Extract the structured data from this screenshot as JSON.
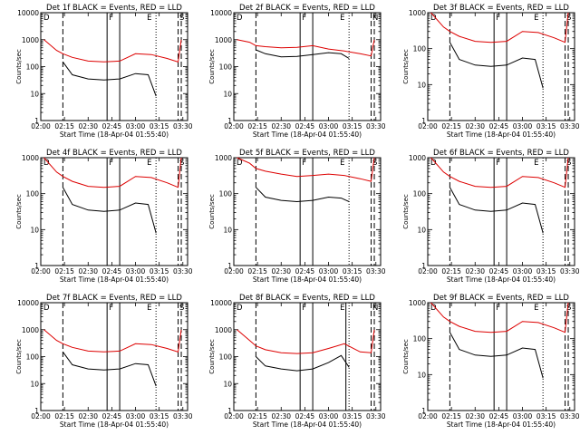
{
  "figure": {
    "xlabel": "Start Time (18-Apr-04 01:55:40)",
    "ylabel": "Counts/sec",
    "x_ticks": [
      "02:00",
      "02:15",
      "02:30",
      "02:45",
      "03:00",
      "03:15",
      "03:30"
    ],
    "y_ticks": [
      "1",
      "10",
      "100",
      "1000",
      "10000"
    ],
    "colors": {
      "events": "#000000",
      "lld": "#dd0000",
      "axes": "#000000"
    }
  },
  "chart_data": [
    {
      "type": "line",
      "title": "Det 1f BLACK = Events, RED = LLD",
      "ylim": [
        1,
        10000
      ],
      "yscale": "log",
      "xlim": [
        "02:00",
        "03:33"
      ],
      "markers": [
        "D",
        "F",
        "E",
        "S"
      ],
      "solid_lines": [
        "02:42",
        "02:50"
      ],
      "dotted_lines": [
        "03:13"
      ],
      "dashed_lines": [
        "02:14",
        "03:27",
        "03:29"
      ],
      "series": [
        {
          "color": "#000000",
          "x": [
            "02:14",
            "02:20",
            "02:30",
            "02:40",
            "02:50",
            "03:00",
            "03:08",
            "03:13"
          ],
          "y": [
            150,
            50,
            35,
            32,
            35,
            55,
            50,
            8
          ]
        },
        {
          "color": "#dd0000",
          "x": [
            "02:02",
            "02:10",
            "02:14",
            "02:20",
            "02:30",
            "02:40",
            "02:50",
            "03:00",
            "03:10",
            "03:20",
            "03:27",
            "03:29"
          ],
          "y": [
            1000,
            400,
            300,
            220,
            160,
            150,
            160,
            300,
            280,
            200,
            150,
            1000
          ]
        }
      ]
    },
    {
      "type": "line",
      "title": "Det 2f BLACK = Events, RED = LLD",
      "ylim": [
        1,
        10000
      ],
      "yscale": "log",
      "xlim": [
        "02:00",
        "03:33"
      ],
      "markers": [
        "D",
        "F",
        "E",
        "N"
      ],
      "solid_lines": [
        "02:42",
        "02:50"
      ],
      "dotted_lines": [
        "03:13"
      ],
      "dashed_lines": [
        "02:14",
        "03:27",
        "03:29"
      ],
      "series": [
        {
          "color": "#000000",
          "x": [
            "02:14",
            "02:20",
            "02:30",
            "02:40",
            "02:50",
            "03:00",
            "03:08",
            "03:13"
          ],
          "y": [
            420,
            300,
            230,
            240,
            280,
            330,
            300,
            200
          ]
        },
        {
          "color": "#dd0000",
          "x": [
            "02:02",
            "02:10",
            "02:14",
            "02:20",
            "02:30",
            "02:40",
            "02:50",
            "03:00",
            "03:10",
            "03:20",
            "03:27",
            "03:29"
          ],
          "y": [
            1000,
            800,
            600,
            550,
            500,
            520,
            600,
            450,
            380,
            300,
            250,
            1000
          ]
        }
      ]
    },
    {
      "type": "line",
      "title": "Det 3f BLACK = Events, RED = LLD",
      "ylim": [
        1,
        1000
      ],
      "yscale": "log",
      "xlim": [
        "02:00",
        "03:33"
      ],
      "markers": [
        "D",
        "F",
        "E",
        "S"
      ],
      "solid_lines": [
        "02:42",
        "02:50"
      ],
      "dotted_lines": [
        "03:13"
      ],
      "dashed_lines": [
        "02:14",
        "03:27",
        "03:29"
      ],
      "series": [
        {
          "color": "#000000",
          "x": [
            "02:14",
            "02:20",
            "02:30",
            "02:40",
            "02:50",
            "03:00",
            "03:08",
            "03:13"
          ],
          "y": [
            150,
            50,
            35,
            32,
            35,
            55,
            50,
            8
          ]
        },
        {
          "color": "#dd0000",
          "x": [
            "02:02",
            "02:10",
            "02:14",
            "02:20",
            "02:30",
            "02:40",
            "02:50",
            "03:00",
            "03:10",
            "03:20",
            "03:27",
            "03:29"
          ],
          "y": [
            1000,
            400,
            300,
            220,
            160,
            150,
            160,
            300,
            280,
            200,
            150,
            1000
          ]
        }
      ]
    },
    {
      "type": "line",
      "title": "Det 4f BLACK = Events, RED = LLD",
      "ylim": [
        1,
        1000
      ],
      "yscale": "log",
      "xlim": [
        "02:00",
        "03:33"
      ],
      "markers": [
        "D",
        "F",
        "E",
        "S"
      ],
      "solid_lines": [
        "02:42",
        "02:50"
      ],
      "dotted_lines": [
        "03:13"
      ],
      "dashed_lines": [
        "02:14",
        "03:27",
        "03:29"
      ],
      "series": [
        {
          "color": "#000000",
          "x": [
            "02:14",
            "02:20",
            "02:30",
            "02:40",
            "02:50",
            "03:00",
            "03:08",
            "03:13"
          ],
          "y": [
            150,
            50,
            35,
            32,
            35,
            55,
            50,
            8
          ]
        },
        {
          "color": "#dd0000",
          "x": [
            "02:02",
            "02:10",
            "02:14",
            "02:20",
            "02:30",
            "02:40",
            "02:50",
            "03:00",
            "03:10",
            "03:20",
            "03:27",
            "03:29"
          ],
          "y": [
            1000,
            400,
            300,
            220,
            160,
            150,
            160,
            300,
            280,
            200,
            150,
            1000
          ]
        }
      ]
    },
    {
      "type": "line",
      "title": "Det 5f BLACK = Events, RED = LLD",
      "ylim": [
        1,
        1000
      ],
      "yscale": "log",
      "xlim": [
        "02:00",
        "03:33"
      ],
      "markers": [
        "D",
        "F",
        "E",
        "S"
      ],
      "solid_lines": [
        "02:42",
        "02:50"
      ],
      "dotted_lines": [
        "03:13"
      ],
      "dashed_lines": [
        "02:14",
        "03:27",
        "03:29"
      ],
      "series": [
        {
          "color": "#000000",
          "x": [
            "02:14",
            "02:20",
            "02:30",
            "02:40",
            "02:50",
            "03:00",
            "03:08",
            "03:13"
          ],
          "y": [
            150,
            80,
            65,
            60,
            65,
            80,
            75,
            60
          ]
        },
        {
          "color": "#dd0000",
          "x": [
            "02:02",
            "02:10",
            "02:14",
            "02:20",
            "02:30",
            "02:40",
            "02:50",
            "03:00",
            "03:10",
            "03:20",
            "03:27",
            "03:29"
          ],
          "y": [
            1000,
            700,
            500,
            420,
            350,
            300,
            320,
            350,
            320,
            260,
            220,
            1000
          ]
        }
      ]
    },
    {
      "type": "line",
      "title": "Det 6f BLACK = Events, RED = LLD",
      "ylim": [
        1,
        1000
      ],
      "yscale": "log",
      "xlim": [
        "02:00",
        "03:33"
      ],
      "markers": [
        "D",
        "F",
        "E",
        "S"
      ],
      "solid_lines": [
        "02:42",
        "02:50"
      ],
      "dotted_lines": [
        "03:13"
      ],
      "dashed_lines": [
        "02:14",
        "03:27",
        "03:29"
      ],
      "series": [
        {
          "color": "#000000",
          "x": [
            "02:14",
            "02:20",
            "02:30",
            "02:40",
            "02:50",
            "03:00",
            "03:08",
            "03:13"
          ],
          "y": [
            150,
            50,
            35,
            32,
            35,
            55,
            50,
            8
          ]
        },
        {
          "color": "#dd0000",
          "x": [
            "02:02",
            "02:10",
            "02:14",
            "02:20",
            "02:30",
            "02:40",
            "02:50",
            "03:00",
            "03:10",
            "03:20",
            "03:27",
            "03:29"
          ],
          "y": [
            1000,
            400,
            300,
            220,
            160,
            150,
            160,
            300,
            280,
            200,
            150,
            1000
          ]
        }
      ]
    },
    {
      "type": "line",
      "title": "Det 7f BLACK = Events, RED = LLD",
      "ylim": [
        1,
        10000
      ],
      "yscale": "log",
      "xlim": [
        "02:00",
        "03:33"
      ],
      "markers": [
        "D",
        "F",
        "E",
        "S"
      ],
      "solid_lines": [
        "02:42",
        "02:50"
      ],
      "dotted_lines": [
        "03:13"
      ],
      "dashed_lines": [
        "02:14",
        "03:27",
        "03:29"
      ],
      "series": [
        {
          "color": "#000000",
          "x": [
            "02:14",
            "02:20",
            "02:30",
            "02:40",
            "02:50",
            "03:00",
            "03:08",
            "03:13"
          ],
          "y": [
            150,
            50,
            35,
            32,
            35,
            55,
            50,
            8
          ]
        },
        {
          "color": "#dd0000",
          "x": [
            "02:02",
            "02:10",
            "02:14",
            "02:20",
            "02:30",
            "02:40",
            "02:50",
            "03:00",
            "03:10",
            "03:20",
            "03:27",
            "03:29"
          ],
          "y": [
            1000,
            400,
            300,
            220,
            160,
            150,
            160,
            300,
            280,
            200,
            150,
            1000
          ]
        }
      ]
    },
    {
      "type": "line",
      "title": "Det 8f BLACK = Events, RED = LLD",
      "ylim": [
        1,
        10000
      ],
      "yscale": "log",
      "xlim": [
        "02:00",
        "03:33"
      ],
      "markers": [
        "D",
        "F",
        "E",
        "N"
      ],
      "solid_lines": [
        "02:42",
        "02:50",
        "03:11"
      ],
      "dotted_lines": [
        "03:13"
      ],
      "dashed_lines": [
        "02:14",
        "03:27",
        "03:29"
      ],
      "series": [
        {
          "color": "#000000",
          "x": [
            "02:14",
            "02:20",
            "02:30",
            "02:40",
            "02:50",
            "03:00",
            "03:08",
            "03:13"
          ],
          "y": [
            100,
            45,
            35,
            30,
            35,
            60,
            110,
            40
          ]
        },
        {
          "color": "#dd0000",
          "x": [
            "02:02",
            "02:10",
            "02:14",
            "02:20",
            "02:30",
            "02:40",
            "02:50",
            "03:00",
            "03:10",
            "03:20",
            "03:27",
            "03:29"
          ],
          "y": [
            1000,
            400,
            250,
            180,
            140,
            130,
            140,
            200,
            300,
            150,
            140,
            1000
          ]
        }
      ]
    },
    {
      "type": "line",
      "title": "Det 9f BLACK = Events, RED = LLD",
      "ylim": [
        1,
        1000
      ],
      "yscale": "log",
      "xlim": [
        "02:00",
        "03:33"
      ],
      "markers": [
        "D",
        "F",
        "E",
        "S"
      ],
      "solid_lines": [
        "02:42",
        "02:50"
      ],
      "dotted_lines": [
        "03:13"
      ],
      "dashed_lines": [
        "02:14",
        "03:27",
        "03:29"
      ],
      "series": [
        {
          "color": "#000000",
          "x": [
            "02:14",
            "02:20",
            "02:30",
            "02:40",
            "02:50",
            "03:00",
            "03:08",
            "03:13"
          ],
          "y": [
            150,
            50,
            35,
            32,
            35,
            55,
            50,
            8
          ]
        },
        {
          "color": "#dd0000",
          "x": [
            "02:02",
            "02:10",
            "02:14",
            "02:20",
            "02:30",
            "02:40",
            "02:50",
            "03:00",
            "03:10",
            "03:20",
            "03:27",
            "03:29"
          ],
          "y": [
            1000,
            400,
            300,
            220,
            160,
            150,
            160,
            300,
            280,
            200,
            150,
            1000
          ]
        }
      ]
    }
  ]
}
